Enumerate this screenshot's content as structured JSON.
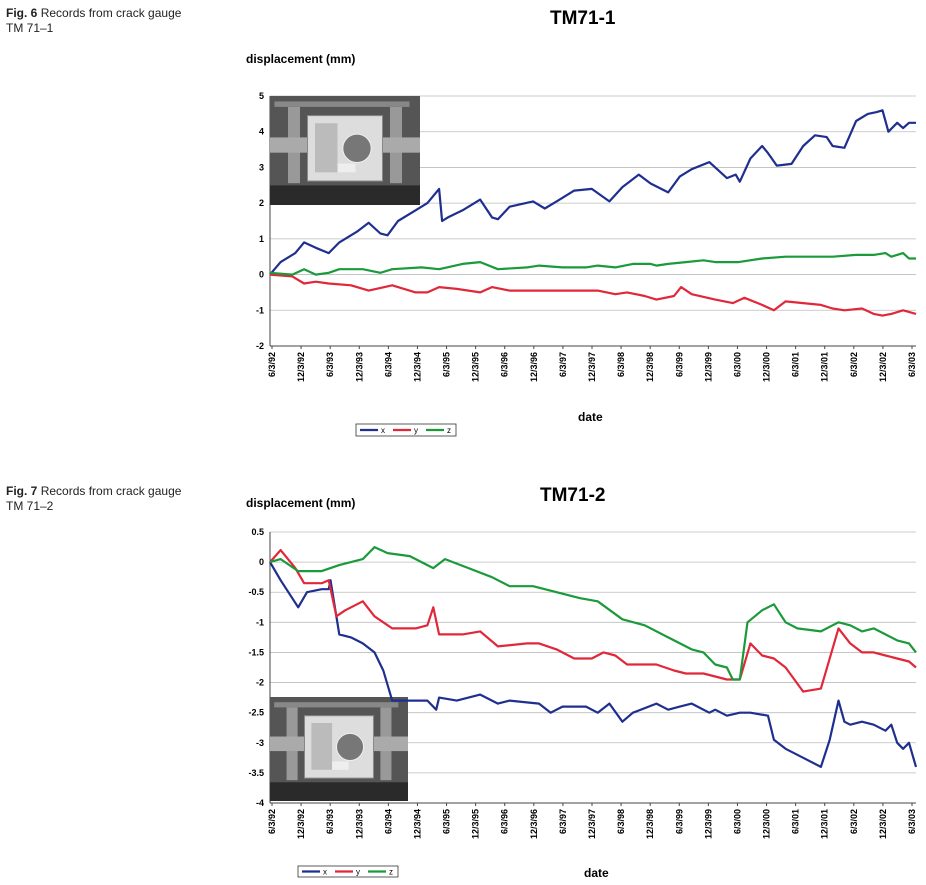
{
  "figures": [
    {
      "caption_label": "Fig. 6",
      "caption_text": "Records from crack gauge",
      "caption_line2": "TM 71–1"
    },
    {
      "caption_label": "Fig. 7",
      "caption_text": "Records from crack gauge",
      "caption_line2": "TM 71–2"
    }
  ],
  "chart_data": [
    {
      "type": "line",
      "title": "TM71-1",
      "ylabel": "displacement (mm)",
      "xlabel": "date",
      "ylim": [
        -2,
        5
      ],
      "yticks": [
        5,
        4,
        3,
        2,
        1,
        0,
        -1,
        -2
      ],
      "x_tick_labels": [
        "6/3/92",
        "12/3/92",
        "6/3/93",
        "12/3/93",
        "6/3/94",
        "12/3/94",
        "6/3/95",
        "12/3/95",
        "6/3/96",
        "12/3/96",
        "6/3/97",
        "12/3/97",
        "6/3/98",
        "12/3/98",
        "6/3/99",
        "12/3/99",
        "6/3/00",
        "12/3/00",
        "6/3/01",
        "12/3/01",
        "6/3/02",
        "12/3/02",
        "6/3/03"
      ],
      "xlim": [
        1992.42,
        2003.42
      ],
      "grid": "horizontal",
      "inset_photo": true,
      "legend_placement": "bottom",
      "colors": {
        "x": "#1f2f8f",
        "y": "#e0283a",
        "z": "#1a9a3a"
      },
      "series": [
        {
          "name": "x",
          "color": "#1f2f8f",
          "x": [
            1992.42,
            1992.6,
            1992.85,
            1993.0,
            1993.2,
            1993.42,
            1993.6,
            1993.9,
            1994.1,
            1994.3,
            1994.42,
            1994.6,
            1994.9,
            1995.1,
            1995.3,
            1995.35,
            1995.45,
            1995.7,
            1996.0,
            1996.2,
            1996.3,
            1996.5,
            1996.9,
            1997.1,
            1997.3,
            1997.6,
            1997.9,
            1998.2,
            1998.42,
            1998.7,
            1998.9,
            1999.2,
            1999.4,
            1999.6,
            1999.9,
            2000.2,
            2000.35,
            2000.42,
            2000.6,
            2000.8,
            2000.9,
            2001.05,
            2001.3,
            2001.5,
            2001.7,
            2001.9,
            2002.0,
            2002.2,
            2002.4,
            2002.6,
            2002.75,
            2002.85,
            2002.95,
            2003.1,
            2003.2,
            2003.3,
            2003.42
          ],
          "y": [
            0.0,
            0.35,
            0.6,
            0.9,
            0.75,
            0.6,
            0.9,
            1.2,
            1.45,
            1.15,
            1.1,
            1.5,
            1.8,
            2.0,
            2.4,
            1.5,
            1.6,
            1.8,
            2.1,
            1.6,
            1.55,
            1.9,
            2.05,
            1.85,
            2.05,
            2.35,
            2.4,
            2.05,
            2.45,
            2.8,
            2.55,
            2.3,
            2.75,
            2.95,
            3.15,
            2.7,
            2.8,
            2.6,
            3.25,
            3.6,
            3.4,
            3.05,
            3.1,
            3.6,
            3.9,
            3.85,
            3.6,
            3.55,
            4.3,
            4.5,
            4.55,
            4.6,
            4.0,
            4.25,
            4.1,
            4.25,
            4.25
          ]
        },
        {
          "name": "y",
          "color": "#e0283a",
          "x": [
            1992.42,
            1992.8,
            1993.0,
            1993.2,
            1993.42,
            1993.8,
            1994.1,
            1994.5,
            1994.9,
            1995.1,
            1995.3,
            1995.6,
            1996.0,
            1996.2,
            1996.5,
            1997.0,
            1997.5,
            1998.0,
            1998.3,
            1998.5,
            1998.8,
            1999.0,
            1999.3,
            1999.42,
            1999.6,
            2000.0,
            2000.3,
            2000.5,
            2000.8,
            2001.0,
            2001.2,
            2001.5,
            2001.8,
            2002.0,
            2002.2,
            2002.5,
            2002.7,
            2002.85,
            2003.0,
            2003.2,
            2003.42
          ],
          "y": [
            0.0,
            -0.05,
            -0.25,
            -0.2,
            -0.25,
            -0.3,
            -0.45,
            -0.3,
            -0.5,
            -0.5,
            -0.35,
            -0.4,
            -0.5,
            -0.35,
            -0.45,
            -0.45,
            -0.45,
            -0.45,
            -0.55,
            -0.5,
            -0.6,
            -0.7,
            -0.6,
            -0.35,
            -0.55,
            -0.7,
            -0.8,
            -0.65,
            -0.85,
            -1.0,
            -0.75,
            -0.8,
            -0.85,
            -0.95,
            -1.0,
            -0.95,
            -1.1,
            -1.15,
            -1.1,
            -1.0,
            -1.1
          ]
        },
        {
          "name": "z",
          "color": "#1a9a3a",
          "x": [
            1992.42,
            1992.8,
            1993.0,
            1993.2,
            1993.42,
            1993.6,
            1994.0,
            1994.3,
            1994.5,
            1995.0,
            1995.3,
            1995.7,
            1996.0,
            1996.3,
            1996.8,
            1997.0,
            1997.4,
            1997.8,
            1998.0,
            1998.3,
            1998.6,
            1998.9,
            1999.0,
            1999.2,
            1999.5,
            1999.8,
            2000.0,
            2000.4,
            2000.8,
            2001.2,
            2001.6,
            2002.0,
            2002.4,
            2002.7,
            2002.9,
            2003.0,
            2003.2,
            2003.3,
            2003.42
          ],
          "y": [
            0.05,
            0.0,
            0.15,
            0.0,
            0.05,
            0.15,
            0.15,
            0.05,
            0.15,
            0.2,
            0.15,
            0.3,
            0.35,
            0.15,
            0.2,
            0.25,
            0.2,
            0.2,
            0.25,
            0.2,
            0.3,
            0.3,
            0.25,
            0.3,
            0.35,
            0.4,
            0.35,
            0.35,
            0.45,
            0.5,
            0.5,
            0.5,
            0.55,
            0.55,
            0.6,
            0.5,
            0.6,
            0.45,
            0.45
          ]
        }
      ]
    },
    {
      "type": "line",
      "title": "TM71-2",
      "ylabel": "displacement (mm)",
      "xlabel": "date",
      "ylim": [
        -4,
        0.5
      ],
      "yticks": [
        "0.5",
        "0",
        "-0.5",
        "-1",
        "-1.5",
        "-2",
        "-2.5",
        "-3",
        "-3.5",
        "-4"
      ],
      "x_tick_labels": [
        "6/3/92",
        "12/3/92",
        "6/3/93",
        "12/3/93",
        "6/3/94",
        "12/3/94",
        "6/3/95",
        "12/3/95",
        "6/3/96",
        "12/3/96",
        "6/3/97",
        "12/3/97",
        "6/3/98",
        "12/3/98",
        "6/3/99",
        "12/3/99",
        "6/3/00",
        "12/3/00",
        "6/3/01",
        "12/3/01",
        "6/3/02",
        "12/3/02",
        "6/3/03"
      ],
      "xlim": [
        1992.42,
        2003.42
      ],
      "grid": "horizontal",
      "inset_photo": true,
      "legend_placement": "bottom",
      "colors": {
        "x": "#1f2f8f",
        "y": "#e0283a",
        "z": "#1a9a3a"
      },
      "series": [
        {
          "name": "x",
          "color": "#1f2f8f",
          "x": [
            1992.42,
            1992.6,
            1992.9,
            1993.05,
            1993.3,
            1993.42,
            1993.45,
            1993.6,
            1993.8,
            1994.0,
            1994.2,
            1994.35,
            1994.5,
            1994.9,
            1995.1,
            1995.25,
            1995.3,
            1995.6,
            1996.0,
            1996.3,
            1996.5,
            1997.0,
            1997.2,
            1997.4,
            1997.8,
            1998.0,
            1998.2,
            1998.42,
            1998.6,
            1999.0,
            1999.2,
            1999.4,
            1999.6,
            1999.9,
            2000.0,
            2000.2,
            2000.42,
            2000.6,
            2000.9,
            2001.0,
            2001.2,
            2001.5,
            2001.8,
            2001.95,
            2002.1,
            2002.2,
            2002.3,
            2002.5,
            2002.7,
            2002.9,
            2003.0,
            2003.1,
            2003.2,
            2003.3,
            2003.42
          ],
          "y": [
            0.0,
            -0.3,
            -0.75,
            -0.5,
            -0.45,
            -0.45,
            -0.3,
            -1.2,
            -1.25,
            -1.35,
            -1.5,
            -1.8,
            -2.3,
            -2.3,
            -2.3,
            -2.45,
            -2.25,
            -2.3,
            -2.2,
            -2.35,
            -2.3,
            -2.35,
            -2.5,
            -2.4,
            -2.4,
            -2.5,
            -2.35,
            -2.65,
            -2.5,
            -2.35,
            -2.45,
            -2.4,
            -2.35,
            -2.5,
            -2.45,
            -2.55,
            -2.5,
            -2.5,
            -2.55,
            -2.95,
            -3.1,
            -3.25,
            -3.4,
            -2.95,
            -2.3,
            -2.65,
            -2.7,
            -2.65,
            -2.7,
            -2.8,
            -2.7,
            -3.0,
            -3.1,
            -3.0,
            -3.4
          ]
        },
        {
          "name": "y",
          "color": "#e0283a",
          "x": [
            1992.42,
            1992.6,
            1992.85,
            1993.0,
            1993.3,
            1993.42,
            1993.55,
            1993.7,
            1994.0,
            1994.2,
            1994.5,
            1994.9,
            1995.1,
            1995.2,
            1995.3,
            1995.7,
            1996.0,
            1996.3,
            1996.8,
            1997.0,
            1997.3,
            1997.6,
            1997.9,
            1998.1,
            1998.3,
            1998.5,
            1998.8,
            1999.0,
            1999.3,
            1999.5,
            1999.8,
            2000.0,
            2000.2,
            2000.42,
            2000.6,
            2000.8,
            2001.0,
            2001.2,
            2001.5,
            2001.8,
            2001.95,
            2002.1,
            2002.3,
            2002.5,
            2002.7,
            2002.9,
            2003.1,
            2003.3,
            2003.42
          ],
          "y": [
            0.0,
            0.2,
            -0.1,
            -0.35,
            -0.35,
            -0.3,
            -0.9,
            -0.8,
            -0.65,
            -0.9,
            -1.1,
            -1.1,
            -1.05,
            -0.75,
            -1.2,
            -1.2,
            -1.15,
            -1.4,
            -1.35,
            -1.35,
            -1.45,
            -1.6,
            -1.6,
            -1.5,
            -1.55,
            -1.7,
            -1.7,
            -1.7,
            -1.8,
            -1.85,
            -1.85,
            -1.9,
            -1.95,
            -1.95,
            -1.35,
            -1.55,
            -1.6,
            -1.75,
            -2.15,
            -2.1,
            -1.6,
            -1.1,
            -1.35,
            -1.5,
            -1.5,
            -1.55,
            -1.6,
            -1.65,
            -1.75
          ]
        },
        {
          "name": "z",
          "color": "#1a9a3a",
          "x": [
            1992.42,
            1992.6,
            1992.9,
            1993.3,
            1993.6,
            1994.0,
            1994.2,
            1994.42,
            1994.8,
            1995.1,
            1995.2,
            1995.4,
            1995.8,
            1996.2,
            1996.5,
            1996.9,
            1997.3,
            1997.7,
            1998.0,
            1998.42,
            1998.8,
            1999.2,
            1999.6,
            1999.8,
            2000.0,
            2000.2,
            2000.3,
            2000.42,
            2000.55,
            2000.8,
            2001.0,
            2001.2,
            2001.4,
            2001.8,
            2002.0,
            2002.1,
            2002.3,
            2002.5,
            2002.7,
            2002.9,
            2003.1,
            2003.3,
            2003.42
          ],
          "y": [
            0.0,
            0.05,
            -0.15,
            -0.15,
            -0.05,
            0.05,
            0.25,
            0.15,
            0.1,
            -0.05,
            -0.1,
            0.05,
            -0.1,
            -0.25,
            -0.4,
            -0.4,
            -0.5,
            -0.6,
            -0.65,
            -0.95,
            -1.05,
            -1.25,
            -1.45,
            -1.5,
            -1.7,
            -1.75,
            -1.95,
            -1.95,
            -1.0,
            -0.8,
            -0.7,
            -1.0,
            -1.1,
            -1.15,
            -1.05,
            -1.0,
            -1.05,
            -1.15,
            -1.1,
            -1.2,
            -1.3,
            -1.35,
            -1.5
          ]
        }
      ]
    }
  ]
}
